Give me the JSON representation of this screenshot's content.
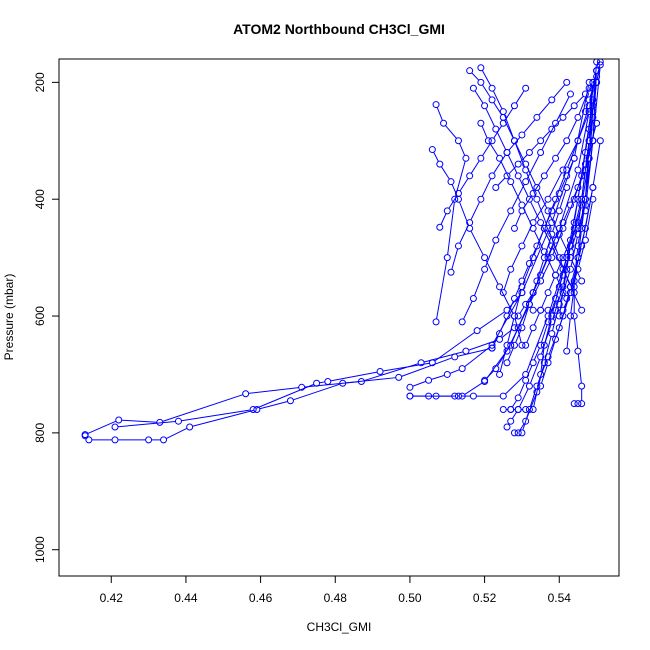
{
  "chart_data": {
    "type": "line",
    "title": "ATOM2 Northbound CH3Cl_GMI",
    "xlabel": "CH3Cl_GMI",
    "ylabel": "Pressure (mbar)",
    "xlim": [
      0.406,
      0.556
    ],
    "ylim": [
      1045,
      160
    ],
    "y_reversed": true,
    "x_ticks": [
      "0.42",
      "0.44",
      "0.46",
      "0.48",
      "0.50",
      "0.52",
      "0.54"
    ],
    "x_tick_values": [
      0.42,
      0.44,
      0.46,
      0.48,
      0.5,
      0.52,
      0.54
    ],
    "y_ticks": [
      "200",
      "400",
      "600",
      "800",
      "1000"
    ],
    "y_tick_values": [
      200,
      400,
      600,
      800,
      1000
    ],
    "grid": false,
    "legend": "none",
    "marker": "open-circle",
    "color": "#0000ff",
    "series": [
      {
        "x": [
          0.413,
          0.414,
          0.421,
          0.43,
          0.434,
          0.441,
          0.459,
          0.468,
          0.482,
          0.497,
          0.512,
          0.522
        ],
        "y": [
          805,
          812,
          812,
          812,
          812,
          790,
          760,
          745,
          715,
          705,
          670,
          655
        ]
      },
      {
        "x": [
          0.413,
          0.422,
          0.433,
          0.456,
          0.471,
          0.487,
          0.503,
          0.515,
          0.524,
          0.528
        ],
        "y": [
          803,
          778,
          782,
          733,
          722,
          712,
          680,
          660,
          640,
          620
        ]
      },
      {
        "x": [
          0.421,
          0.438,
          0.458,
          0.475,
          0.478,
          0.492,
          0.506,
          0.518,
          0.526,
          0.53
        ],
        "y": [
          790,
          780,
          760,
          715,
          712,
          695,
          680,
          625,
          590,
          560
        ]
      },
      {
        "x": [
          0.5,
          0.505,
          0.512,
          0.514,
          0.52,
          0.527,
          0.533,
          0.54,
          0.545,
          0.548,
          0.55
        ],
        "y": [
          737,
          737,
          737,
          737,
          712,
          650,
          560,
          450,
          350,
          250,
          180
        ]
      },
      {
        "x": [
          0.5,
          0.507,
          0.513,
          0.517,
          0.525,
          0.531,
          0.537,
          0.542,
          0.545,
          0.549
        ],
        "y": [
          737,
          737,
          737,
          737,
          737,
          700,
          600,
          500,
          400,
          230
        ]
      },
      {
        "x": [
          0.5,
          0.505,
          0.51,
          0.514,
          0.522,
          0.53,
          0.538,
          0.544,
          0.548
        ],
        "y": [
          722,
          710,
          700,
          690,
          650,
          560,
          440,
          330,
          200
        ]
      },
      {
        "x": [
          0.525,
          0.527,
          0.529,
          0.531,
          0.533,
          0.535,
          0.536,
          0.538,
          0.54,
          0.542,
          0.544,
          0.546,
          0.548,
          0.549
        ],
        "y": [
          760,
          760,
          760,
          760,
          760,
          700,
          650,
          600,
          550,
          500,
          450,
          400,
          300,
          200
        ]
      },
      {
        "x": [
          0.528,
          0.529,
          0.531,
          0.534,
          0.536,
          0.538,
          0.54,
          0.543,
          0.545,
          0.547,
          0.549,
          0.55
        ],
        "y": [
          800,
          800,
          780,
          730,
          680,
          630,
          580,
          520,
          460,
          400,
          300,
          180
        ]
      },
      {
        "x": [
          0.526,
          0.527,
          0.529,
          0.532,
          0.535,
          0.538,
          0.541,
          0.543,
          0.546,
          0.548,
          0.55
        ],
        "y": [
          790,
          780,
          760,
          720,
          670,
          610,
          550,
          480,
          410,
          330,
          165
        ]
      },
      {
        "x": [
          0.544,
          0.545,
          0.546,
          0.546,
          0.545,
          0.544,
          0.544,
          0.545,
          0.547,
          0.548,
          0.549
        ],
        "y": [
          750,
          750,
          750,
          720,
          660,
          600,
          540,
          480,
          400,
          300,
          200
        ]
      },
      {
        "x": [
          0.507,
          0.509,
          0.513,
          0.515,
          0.512,
          0.51,
          0.507
        ],
        "y": [
          238,
          270,
          300,
          330,
          400,
          500,
          610
        ]
      },
      {
        "x": [
          0.506,
          0.508,
          0.511,
          0.513,
          0.516,
          0.52,
          0.524,
          0.528,
          0.53
        ],
        "y": [
          315,
          340,
          370,
          400,
          450,
          500,
          550,
          600,
          650
        ]
      },
      {
        "x": [
          0.508,
          0.51,
          0.513,
          0.516,
          0.519,
          0.522,
          0.525,
          0.528,
          0.531
        ],
        "y": [
          448,
          420,
          390,
          360,
          330,
          300,
          270,
          240,
          210
        ]
      },
      {
        "x": [
          0.511,
          0.513,
          0.516,
          0.519,
          0.522,
          0.526,
          0.53,
          0.534,
          0.538,
          0.542
        ],
        "y": [
          525,
          480,
          440,
          400,
          360,
          320,
          290,
          260,
          230,
          200
        ]
      },
      {
        "x": [
          0.514,
          0.517,
          0.52,
          0.523,
          0.527,
          0.531,
          0.535,
          0.539,
          0.543
        ],
        "y": [
          610,
          570,
          520,
          470,
          420,
          370,
          320,
          270,
          220
        ]
      },
      {
        "x": [
          0.517,
          0.52,
          0.523,
          0.526,
          0.529,
          0.532,
          0.535,
          0.538,
          0.541,
          0.544
        ],
        "y": [
          210,
          240,
          280,
          320,
          360,
          400,
          440,
          480,
          520,
          560
        ]
      },
      {
        "x": [
          0.519,
          0.522,
          0.525,
          0.528,
          0.531,
          0.534,
          0.537,
          0.54,
          0.543,
          0.546
        ],
        "y": [
          175,
          210,
          250,
          300,
          350,
          400,
          450,
          500,
          550,
          590
        ]
      },
      {
        "x": [
          0.522,
          0.524,
          0.526,
          0.528,
          0.53,
          0.532,
          0.534,
          0.536,
          0.538,
          0.54,
          0.542,
          0.544
        ],
        "y": [
          655,
          630,
          600,
          570,
          540,
          510,
          480,
          450,
          420,
          390,
          360,
          330
        ]
      },
      {
        "x": [
          0.524,
          0.526,
          0.528,
          0.53,
          0.533,
          0.536,
          0.539,
          0.542,
          0.545,
          0.548
        ],
        "y": [
          700,
          650,
          600,
          550,
          500,
          450,
          400,
          350,
          300,
          250
        ]
      },
      {
        "x": [
          0.52,
          0.523,
          0.526,
          0.529,
          0.532,
          0.535,
          0.538,
          0.541,
          0.544,
          0.547,
          0.55
        ],
        "y": [
          710,
          690,
          660,
          620,
          580,
          540,
          500,
          450,
          400,
          340,
          270
        ]
      },
      {
        "x": [
          0.525,
          0.527,
          0.53,
          0.533,
          0.537,
          0.541,
          0.545,
          0.548,
          0.55
        ],
        "y": [
          560,
          520,
          480,
          440,
          400,
          350,
          300,
          240,
          180
        ]
      },
      {
        "x": [
          0.528,
          0.53,
          0.533,
          0.536,
          0.539,
          0.542,
          0.545,
          0.548
        ],
        "y": [
          450,
          420,
          390,
          360,
          330,
          300,
          260,
          210
        ]
      },
      {
        "x": [
          0.523,
          0.526,
          0.529,
          0.532,
          0.535,
          0.538,
          0.541,
          0.544,
          0.547,
          0.55
        ],
        "y": [
          380,
          360,
          340,
          320,
          300,
          280,
          260,
          240,
          220,
          200
        ]
      },
      {
        "x": [
          0.529,
          0.531,
          0.533,
          0.535,
          0.537,
          0.539,
          0.541,
          0.543,
          0.545,
          0.547,
          0.549
        ],
        "y": [
          600,
          580,
          560,
          530,
          500,
          470,
          440,
          410,
          380,
          350,
          300
        ]
      },
      {
        "x": [
          0.533,
          0.535,
          0.537,
          0.539,
          0.541,
          0.543,
          0.545,
          0.547,
          0.549
        ],
        "y": [
          590,
          590,
          590,
          590,
          590,
          560,
          520,
          470,
          400
        ]
      },
      {
        "x": [
          0.545,
          0.546,
          0.547,
          0.548,
          0.549,
          0.55,
          0.551
        ],
        "y": [
          450,
          400,
          350,
          300,
          250,
          200,
          165
        ]
      },
      {
        "x": [
          0.535,
          0.537,
          0.539,
          0.541,
          0.543,
          0.545,
          0.547,
          0.549,
          0.551
        ],
        "y": [
          720,
          680,
          640,
          600,
          550,
          500,
          450,
          380,
          300
        ]
      },
      {
        "x": [
          0.531,
          0.533,
          0.535,
          0.537,
          0.539,
          0.541,
          0.543,
          0.545
        ],
        "y": [
          650,
          620,
          590,
          560,
          530,
          500,
          470,
          440
        ]
      },
      {
        "x": [
          0.526,
          0.528,
          0.53,
          0.532,
          0.534,
          0.536,
          0.538,
          0.54,
          0.542
        ],
        "y": [
          680,
          650,
          620,
          580,
          540,
          500,
          460,
          420,
          380
        ]
      },
      {
        "x": [
          0.527,
          0.529,
          0.531,
          0.533,
          0.535,
          0.537,
          0.539,
          0.541,
          0.543,
          0.545,
          0.547
        ],
        "y": [
          760,
          740,
          710,
          680,
          650,
          610,
          570,
          530,
          490,
          450,
          410
        ]
      },
      {
        "x": [
          0.53,
          0.532,
          0.534,
          0.537,
          0.54,
          0.543,
          0.546,
          0.549
        ],
        "y": [
          800,
          760,
          720,
          670,
          620,
          560,
          480,
          380
        ]
      },
      {
        "x": [
          0.519,
          0.521,
          0.524,
          0.527,
          0.53,
          0.533,
          0.536,
          0.539,
          0.542
        ],
        "y": [
          270,
          300,
          330,
          370,
          410,
          450,
          490,
          530,
          570
        ]
      },
      {
        "x": [
          0.516,
          0.519,
          0.522,
          0.525,
          0.528,
          0.531,
          0.534,
          0.537,
          0.54,
          0.543,
          0.546
        ],
        "y": [
          180,
          200,
          230,
          260,
          300,
          340,
          380,
          420,
          460,
          500,
          540
        ]
      },
      {
        "x": [
          0.54,
          0.541,
          0.542,
          0.543,
          0.544,
          0.545,
          0.546,
          0.547,
          0.548,
          0.549,
          0.55
        ],
        "y": [
          600,
          560,
          520,
          480,
          440,
          400,
          360,
          320,
          280,
          240,
          200
        ]
      },
      {
        "x": [
          0.542,
          0.543,
          0.544,
          0.545,
          0.546,
          0.547,
          0.548,
          0.549
        ],
        "y": [
          660,
          600,
          550,
          500,
          450,
          400,
          330,
          260
        ]
      },
      {
        "x": [
          0.547,
          0.548,
          0.549,
          0.55,
          0.551,
          0.549,
          0.547
        ],
        "y": [
          250,
          230,
          210,
          190,
          170,
          300,
          420
        ]
      }
    ]
  }
}
